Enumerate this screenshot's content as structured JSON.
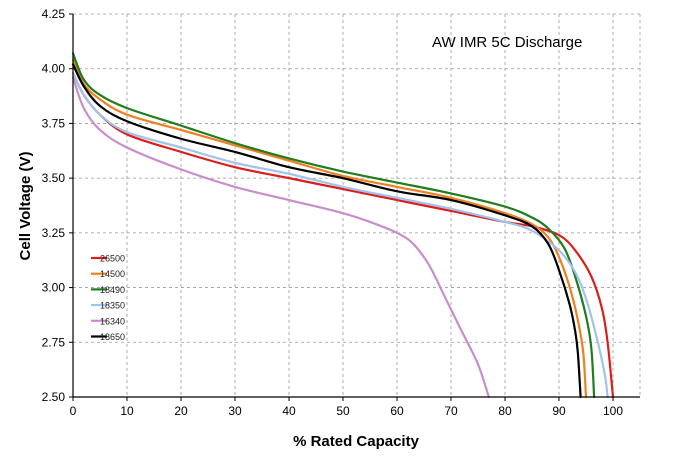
{
  "chart_data": {
    "type": "line",
    "title": "AW IMR 5C Discharge",
    "xlabel": "% Rated Capacity",
    "ylabel": "Cell Voltage (V)",
    "xlim": [
      0,
      105
    ],
    "ylim": [
      2.5,
      4.25
    ],
    "x_ticks": [
      "0",
      "10",
      "20",
      "30",
      "40",
      "50",
      "60",
      "70",
      "80",
      "90",
      "100"
    ],
    "y_ticks": [
      "2.50",
      "2.75",
      "3.00",
      "3.25",
      "3.50",
      "3.75",
      "4.00",
      "4.25"
    ],
    "grid": true,
    "grid_style": "dashed",
    "legend_position": "left-middle",
    "series": [
      {
        "name": "26500",
        "color": "#dd1c1c",
        "points": [
          [
            0,
            3.98
          ],
          [
            2,
            3.88
          ],
          [
            5,
            3.79
          ],
          [
            10,
            3.7
          ],
          [
            20,
            3.62
          ],
          [
            30,
            3.55
          ],
          [
            40,
            3.5
          ],
          [
            50,
            3.45
          ],
          [
            60,
            3.4
          ],
          [
            70,
            3.35
          ],
          [
            80,
            3.3
          ],
          [
            85,
            3.28
          ],
          [
            90,
            3.24
          ],
          [
            93,
            3.17
          ],
          [
            96,
            3.05
          ],
          [
            98,
            2.9
          ],
          [
            99,
            2.75
          ],
          [
            100,
            2.5
          ]
        ]
      },
      {
        "name": "14500",
        "color": "#f07f1e",
        "points": [
          [
            0,
            4.04
          ],
          [
            2,
            3.93
          ],
          [
            5,
            3.86
          ],
          [
            10,
            3.79
          ],
          [
            20,
            3.72
          ],
          [
            30,
            3.65
          ],
          [
            40,
            3.58
          ],
          [
            50,
            3.51
          ],
          [
            60,
            3.46
          ],
          [
            70,
            3.41
          ],
          [
            80,
            3.34
          ],
          [
            85,
            3.29
          ],
          [
            88,
            3.23
          ],
          [
            90,
            3.14
          ],
          [
            92,
            3.0
          ],
          [
            93.5,
            2.85
          ],
          [
            94.5,
            2.7
          ],
          [
            95,
            2.5
          ]
        ]
      },
      {
        "name": "18490",
        "color": "#1f7d1f",
        "points": [
          [
            0,
            4.07
          ],
          [
            2,
            3.95
          ],
          [
            5,
            3.88
          ],
          [
            10,
            3.82
          ],
          [
            20,
            3.74
          ],
          [
            30,
            3.66
          ],
          [
            40,
            3.59
          ],
          [
            50,
            3.53
          ],
          [
            60,
            3.48
          ],
          [
            70,
            3.43
          ],
          [
            80,
            3.37
          ],
          [
            85,
            3.32
          ],
          [
            88,
            3.27
          ],
          [
            91,
            3.18
          ],
          [
            93,
            3.05
          ],
          [
            95,
            2.87
          ],
          [
            96,
            2.72
          ],
          [
            96.5,
            2.5
          ]
        ]
      },
      {
        "name": "18350",
        "color": "#9fc3ea",
        "points": [
          [
            0,
            3.98
          ],
          [
            2,
            3.88
          ],
          [
            5,
            3.79
          ],
          [
            10,
            3.71
          ],
          [
            20,
            3.64
          ],
          [
            30,
            3.57
          ],
          [
            40,
            3.52
          ],
          [
            50,
            3.46
          ],
          [
            60,
            3.41
          ],
          [
            70,
            3.36
          ],
          [
            80,
            3.3
          ],
          [
            85,
            3.26
          ],
          [
            90,
            3.17
          ],
          [
            93,
            3.07
          ],
          [
            95,
            2.95
          ],
          [
            97,
            2.77
          ],
          [
            98.5,
            2.6
          ],
          [
            99,
            2.5
          ]
        ]
      },
      {
        "name": "16340",
        "color": "#c88ecb",
        "points": [
          [
            0,
            3.96
          ],
          [
            2,
            3.82
          ],
          [
            5,
            3.72
          ],
          [
            10,
            3.64
          ],
          [
            20,
            3.54
          ],
          [
            30,
            3.46
          ],
          [
            40,
            3.4
          ],
          [
            50,
            3.34
          ],
          [
            55,
            3.3
          ],
          [
            60,
            3.25
          ],
          [
            63,
            3.2
          ],
          [
            66,
            3.1
          ],
          [
            69,
            2.95
          ],
          [
            72,
            2.8
          ],
          [
            75,
            2.65
          ],
          [
            77,
            2.5
          ]
        ]
      },
      {
        "name": "18650",
        "color": "#000000",
        "points": [
          [
            0,
            4.02
          ],
          [
            2,
            3.92
          ],
          [
            5,
            3.83
          ],
          [
            10,
            3.76
          ],
          [
            20,
            3.68
          ],
          [
            30,
            3.62
          ],
          [
            40,
            3.55
          ],
          [
            50,
            3.5
          ],
          [
            60,
            3.44
          ],
          [
            70,
            3.4
          ],
          [
            80,
            3.33
          ],
          [
            85,
            3.28
          ],
          [
            88,
            3.2
          ],
          [
            90,
            3.08
          ],
          [
            92,
            2.92
          ],
          [
            93,
            2.8
          ],
          [
            93.5,
            2.7
          ],
          [
            94,
            2.5
          ]
        ]
      }
    ]
  }
}
